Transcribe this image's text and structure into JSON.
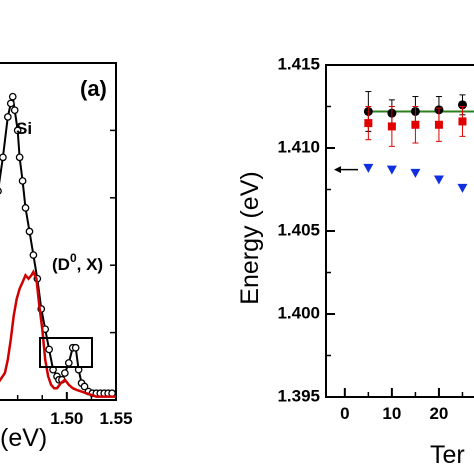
{
  "chart_data": [
    {
      "panel_label": "(a)",
      "type": "line",
      "xlabel": "(eV)",
      "xlim": [
        1.43,
        1.55
      ],
      "ylim": [
        0,
        1
      ],
      "x_ticks": [
        "1.50",
        "1.55"
      ],
      "x_tick_values": [
        1.5,
        1.55
      ],
      "annotations": [
        "Si",
        "(D",
        "0",
        ", X)"
      ],
      "series": [
        {
          "color": "#000000",
          "marker": "open-circle",
          "x": [
            1.43,
            1.435,
            1.44,
            1.443,
            1.445,
            1.447,
            1.45,
            1.452,
            1.455,
            1.458,
            1.462,
            1.466,
            1.47,
            1.474,
            1.478,
            1.482,
            1.486,
            1.49,
            1.492,
            1.495,
            1.498,
            1.502,
            1.506,
            1.509,
            1.512,
            1.515,
            1.518,
            1.522,
            1.526,
            1.53,
            1.534,
            1.538,
            1.542,
            1.546
          ],
          "y": [
            0.62,
            0.72,
            0.84,
            0.88,
            0.9,
            0.86,
            0.8,
            0.72,
            0.65,
            0.57,
            0.5,
            0.43,
            0.36,
            0.27,
            0.21,
            0.15,
            0.09,
            0.07,
            0.06,
            0.06,
            0.08,
            0.11,
            0.155,
            0.155,
            0.09,
            0.05,
            0.04,
            0.025,
            0.02,
            0.02,
            0.02,
            0.02,
            0.02,
            0.02
          ]
        },
        {
          "color": "#d00000",
          "marker": "none",
          "x": [
            1.43,
            1.437,
            1.44,
            1.443,
            1.446,
            1.449,
            1.452,
            1.455,
            1.458,
            1.461,
            1.464,
            1.466,
            1.469,
            1.472,
            1.475,
            1.478,
            1.481,
            1.484,
            1.487,
            1.49,
            1.494,
            1.498,
            1.502,
            1.506,
            1.51,
            1.515,
            1.52,
            1.525,
            1.53,
            1.54,
            1.55
          ],
          "y": [
            0.05,
            0.08,
            0.12,
            0.18,
            0.25,
            0.3,
            0.33,
            0.35,
            0.37,
            0.36,
            0.37,
            0.38,
            0.36,
            0.28,
            0.21,
            0.12,
            0.07,
            0.045,
            0.035,
            0.035,
            0.05,
            0.06,
            0.045,
            0.035,
            0.03,
            0.025,
            0.02,
            0.015,
            0.01,
            0.01,
            0.01
          ]
        }
      ]
    },
    {
      "type": "scatter",
      "xlabel": "Ter",
      "ylabel": "Energy (eV)",
      "xlim": [
        -4,
        30
      ],
      "ylim": [
        1.395,
        1.415
      ],
      "x_ticks": [
        "0",
        "10",
        "20"
      ],
      "x_tick_values": [
        0,
        10,
        20
      ],
      "y_ticks": [
        "1.395",
        "1.400",
        "1.405",
        "1.410",
        "1.415"
      ],
      "y_tick_values": [
        1.395,
        1.4,
        1.405,
        1.41,
        1.415
      ],
      "fit_line": {
        "color": "#2e7d1e",
        "x": [
          5,
          30
        ],
        "y": [
          1.4122,
          1.4122
        ]
      },
      "arrow_level": 1.4087,
      "series": [
        {
          "color": "#000000",
          "marker": "filled-circle",
          "x": [
            5,
            10,
            15,
            20,
            25
          ],
          "y": [
            1.4122,
            1.4121,
            1.4122,
            1.4123,
            1.4126
          ],
          "err": [
            0.0012,
            0.0008,
            0.0009,
            0.0008,
            0.0006
          ]
        },
        {
          "color": "#e00000",
          "marker": "filled-square",
          "x": [
            5,
            10,
            15,
            20,
            25
          ],
          "y": [
            1.4115,
            1.4113,
            1.4114,
            1.4114,
            1.4116
          ],
          "err": [
            0.001,
            0.0012,
            0.0011,
            0.001,
            0.0009
          ]
        },
        {
          "color": "#1030e0",
          "marker": "filled-triangle-down",
          "x": [
            5,
            10,
            15,
            20,
            25
          ],
          "y": [
            1.4088,
            1.4087,
            1.4085,
            1.4081,
            1.4076
          ],
          "err": []
        }
      ]
    }
  ]
}
